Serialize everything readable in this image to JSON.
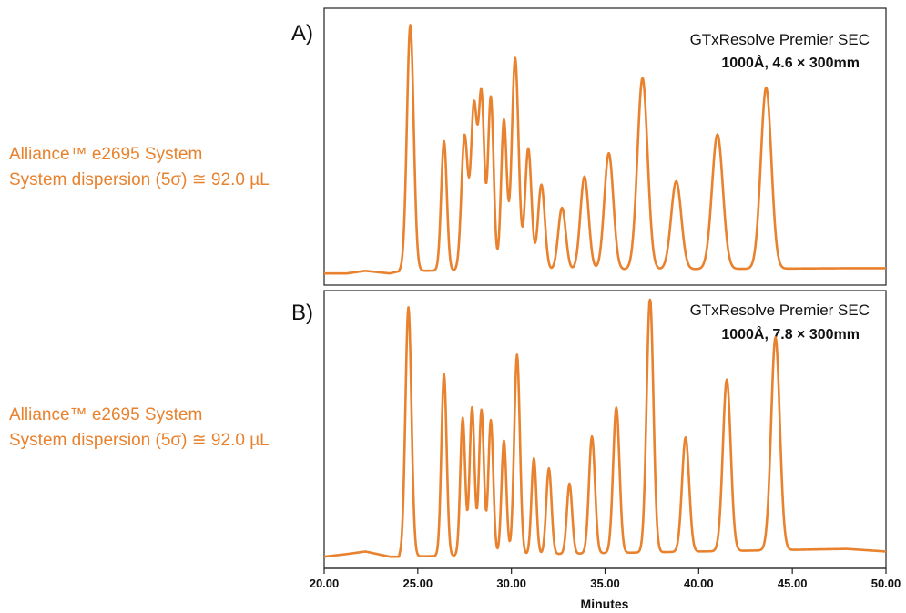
{
  "colors": {
    "trace": "#e8822e",
    "axis": "#222222",
    "text": "#111111"
  },
  "x_axis": {
    "label": "Minutes",
    "ticks": [
      "20.00",
      "25.00",
      "30.00",
      "35.00",
      "40.00",
      "45.00",
      "50.00"
    ]
  },
  "chart_data": [
    {
      "type": "line",
      "panel_label": "A)",
      "title": "GTxResolve Premier SEC",
      "subtitle": "1000Å, 4.6 × 300mm",
      "system_label": "Alliance™ e2695 System",
      "dispersion_label": "System dispersion (5σ) ≅ 92.0 µL",
      "xlabel": "Minutes",
      "xlim": [
        20,
        50
      ],
      "grid": false,
      "baseline": [
        [
          20,
          0.01
        ],
        [
          21.2,
          0.01
        ],
        [
          22.2,
          0.02
        ],
        [
          23.5,
          0.01
        ],
        [
          24.1,
          0.02
        ],
        [
          47.6,
          0.03
        ]
      ],
      "peaks": [
        {
          "x": 24.6,
          "h": 0.95,
          "w": 0.18
        },
        {
          "x": 26.4,
          "h": 0.5,
          "w": 0.15
        },
        {
          "x": 27.5,
          "h": 0.52,
          "w": 0.17
        },
        {
          "x": 28.0,
          "h": 0.63,
          "w": 0.16
        },
        {
          "x": 28.4,
          "h": 0.67,
          "w": 0.15
        },
        {
          "x": 28.9,
          "h": 0.67,
          "w": 0.15
        },
        {
          "x": 29.6,
          "h": 0.58,
          "w": 0.15
        },
        {
          "x": 30.2,
          "h": 0.82,
          "w": 0.18
        },
        {
          "x": 30.9,
          "h": 0.47,
          "w": 0.17
        },
        {
          "x": 31.6,
          "h": 0.33,
          "w": 0.18
        },
        {
          "x": 32.7,
          "h": 0.24,
          "w": 0.2
        },
        {
          "x": 33.9,
          "h": 0.36,
          "w": 0.22
        },
        {
          "x": 35.2,
          "h": 0.45,
          "w": 0.24
        },
        {
          "x": 37.0,
          "h": 0.74,
          "w": 0.27
        },
        {
          "x": 38.8,
          "h": 0.34,
          "w": 0.27
        },
        {
          "x": 41.0,
          "h": 0.52,
          "w": 0.29
        },
        {
          "x": 43.6,
          "h": 0.7,
          "w": 0.28
        }
      ]
    },
    {
      "type": "line",
      "panel_label": "B)",
      "title": "GTxResolve Premier SEC",
      "subtitle": "1000Å, 7.8 × 300mm",
      "system_label": "Alliance™ e2695 System",
      "dispersion_label": "System dispersion (5σ) ≅ 92.0 µL",
      "xlabel": "Minutes",
      "xlim": [
        20,
        50
      ],
      "grid": false,
      "baseline": [
        [
          20,
          0.01
        ],
        [
          21.2,
          0.02
        ],
        [
          22.2,
          0.03
        ],
        [
          23.5,
          0.01
        ],
        [
          24.1,
          0.01
        ],
        [
          47.9,
          0.04
        ],
        [
          50,
          0.03
        ]
      ],
      "peaks": [
        {
          "x": 24.5,
          "h": 0.96,
          "w": 0.16
        },
        {
          "x": 26.4,
          "h": 0.7,
          "w": 0.14
        },
        {
          "x": 27.4,
          "h": 0.53,
          "w": 0.13
        },
        {
          "x": 27.9,
          "h": 0.57,
          "w": 0.13
        },
        {
          "x": 28.4,
          "h": 0.56,
          "w": 0.13
        },
        {
          "x": 28.9,
          "h": 0.52,
          "w": 0.13
        },
        {
          "x": 29.6,
          "h": 0.44,
          "w": 0.13
        },
        {
          "x": 30.3,
          "h": 0.77,
          "w": 0.15
        },
        {
          "x": 31.2,
          "h": 0.37,
          "w": 0.13
        },
        {
          "x": 32.0,
          "h": 0.33,
          "w": 0.14
        },
        {
          "x": 33.1,
          "h": 0.27,
          "w": 0.14
        },
        {
          "x": 34.3,
          "h": 0.45,
          "w": 0.16
        },
        {
          "x": 35.6,
          "h": 0.56,
          "w": 0.17
        },
        {
          "x": 37.4,
          "h": 0.98,
          "w": 0.18
        },
        {
          "x": 39.3,
          "h": 0.44,
          "w": 0.19
        },
        {
          "x": 41.5,
          "h": 0.66,
          "w": 0.21
        },
        {
          "x": 44.1,
          "h": 0.82,
          "w": 0.23
        }
      ]
    }
  ]
}
